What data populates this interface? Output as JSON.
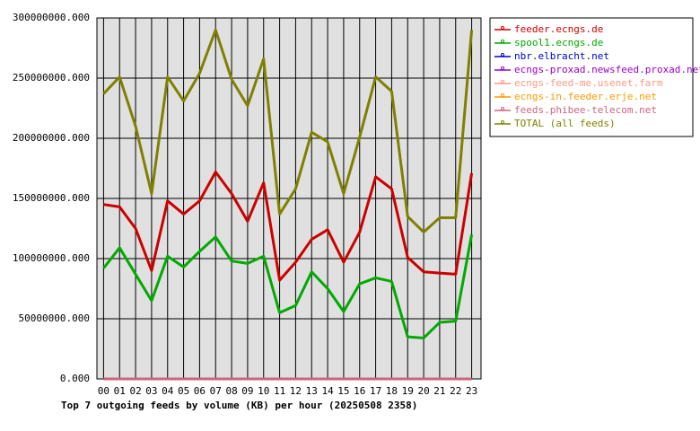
{
  "chart_data": {
    "type": "line",
    "title": "Top 7 outgoing feeds by volume (KB) per hour (20250508 2358)",
    "categories": [
      "00",
      "01",
      "02",
      "03",
      "04",
      "05",
      "06",
      "07",
      "08",
      "09",
      "10",
      "11",
      "12",
      "13",
      "14",
      "15",
      "16",
      "17",
      "18",
      "19",
      "20",
      "21",
      "22",
      "23"
    ],
    "ylim": [
      0,
      300000000
    ],
    "yticks": [
      {
        "value": 0,
        "label": "0.000"
      },
      {
        "value": 50000000,
        "label": "50000000.000"
      },
      {
        "value": 100000000,
        "label": "100000000.000"
      },
      {
        "value": 150000000,
        "label": "150000000.000"
      },
      {
        "value": 200000000,
        "label": "200000000.000"
      },
      {
        "value": 250000000,
        "label": "250000000.000"
      },
      {
        "value": 300000000,
        "label": "300000000.000"
      }
    ],
    "grid": true,
    "legend": "right",
    "series": [
      {
        "name": "feeder.ecngs.de",
        "color": "#cc0000",
        "values": [
          145000000,
          143000000,
          125000000,
          90000000,
          148000000,
          137000000,
          148000000,
          172000000,
          154000000,
          131000000,
          163000000,
          82000000,
          97000000,
          116000000,
          124000000,
          97000000,
          122000000,
          168000000,
          158000000,
          101000000,
          89000000,
          88000000,
          87000000,
          171000000
        ]
      },
      {
        "name": "spool1.ecngs.de",
        "color": "#00aa00",
        "values": [
          92000000,
          109000000,
          87000000,
          65000000,
          102000000,
          93000000,
          106000000,
          118000000,
          98000000,
          96000000,
          102000000,
          55000000,
          61000000,
          89000000,
          75000000,
          56000000,
          79000000,
          84000000,
          81000000,
          35000000,
          34000000,
          47000000,
          48000000,
          120000000
        ]
      },
      {
        "name": "nbr.elbracht.net",
        "color": "#0000cc",
        "values": [
          0,
          0,
          0,
          0,
          0,
          0,
          0,
          0,
          0,
          0,
          0,
          0,
          0,
          0,
          0,
          0,
          0,
          0,
          0,
          0,
          0,
          0,
          0,
          0
        ]
      },
      {
        "name": "ecngs-proxad.newsfeed.proxad.net",
        "color": "#9900cc",
        "values": [
          0,
          0,
          0,
          0,
          0,
          0,
          0,
          0,
          0,
          0,
          0,
          0,
          0,
          0,
          0,
          0,
          0,
          0,
          0,
          0,
          0,
          0,
          0,
          0
        ]
      },
      {
        "name": "ecngs-feed-me.usenet.farm",
        "color": "#ff9980",
        "values": [
          0,
          0,
          0,
          0,
          0,
          0,
          0,
          0,
          0,
          0,
          0,
          0,
          0,
          0,
          0,
          0,
          0,
          0,
          0,
          0,
          0,
          0,
          0,
          0
        ]
      },
      {
        "name": "ecngs-in.feeder.erje.net",
        "color": "#ff9900",
        "values": [
          0,
          0,
          0,
          0,
          0,
          0,
          0,
          0,
          0,
          0,
          0,
          0,
          0,
          0,
          0,
          0,
          0,
          0,
          0,
          0,
          0,
          0,
          0,
          0
        ]
      },
      {
        "name": "feeds.phibee-telecom.net",
        "color": "#cc6680",
        "values": [
          0,
          0,
          0,
          0,
          0,
          0,
          0,
          0,
          0,
          0,
          0,
          0,
          0,
          0,
          0,
          0,
          0,
          0,
          0,
          0,
          0,
          0,
          0,
          0
        ]
      },
      {
        "name": "TOTAL (all feeds)",
        "color": "#808000",
        "values": [
          237000000,
          251000000,
          210000000,
          154000000,
          251000000,
          231000000,
          254000000,
          290000000,
          249000000,
          227000000,
          266000000,
          137000000,
          158000000,
          205000000,
          197000000,
          154000000,
          201000000,
          251000000,
          239000000,
          135000000,
          122000000,
          134000000,
          134000000,
          290000000
        ]
      }
    ]
  }
}
